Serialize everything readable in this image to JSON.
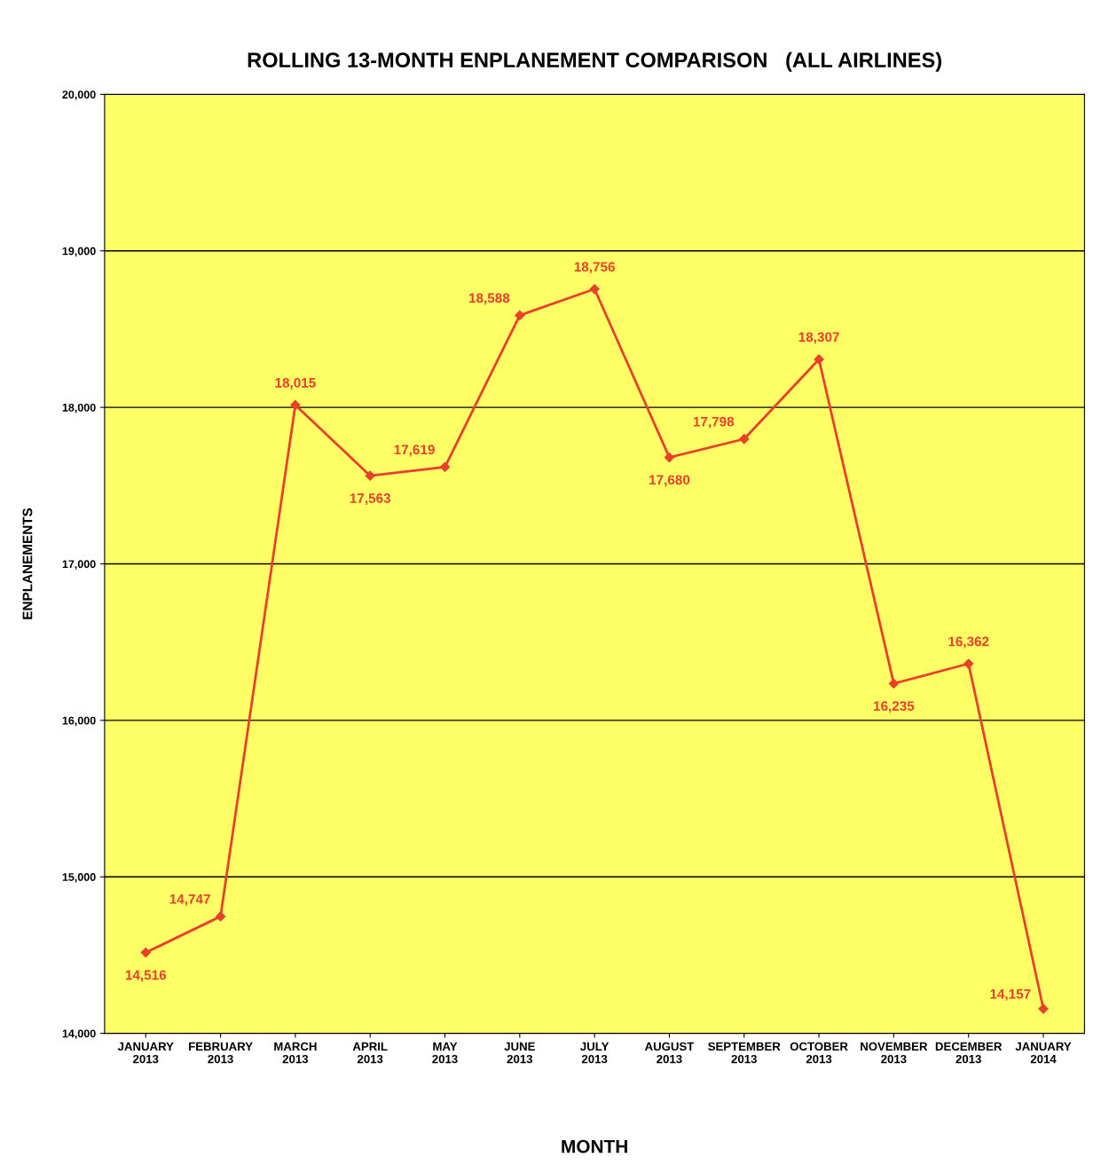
{
  "chart_data": {
    "type": "line",
    "title": "ROLLING 13-MONTH ENPLANEMENT COMPARISON   (ALL AIRLINES)",
    "xlabel": "MONTH",
    "ylabel": "ENPLANEMENTS",
    "categories": [
      "JANUARY\n2013",
      "FEBRUARY\n2013",
      "MARCH\n2013",
      "APRIL\n2013",
      "MAY\n2013",
      "JUNE\n2013",
      "JULY\n2013",
      "AUGUST\n2013",
      "SEPTEMBER\n2013",
      "OCTOBER\n2013",
      "NOVEMBER\n2013",
      "DECEMBER\n2013",
      "JANUARY\n2014"
    ],
    "series": [
      {
        "color": "#e8402a",
        "values": [
          14516,
          14747,
          18015,
          17563,
          17619,
          18588,
          18756,
          17680,
          17798,
          18307,
          16235,
          16362,
          14157
        ],
        "value_labels": [
          "14,516",
          "14,747",
          "18,015",
          "17,563",
          "17,619",
          "18,588",
          "18,756",
          "17,680",
          "17,798",
          "18,307",
          "16,235",
          "16,362",
          "14,157"
        ]
      }
    ],
    "ylim": [
      14000,
      20000
    ],
    "yticks": [
      {
        "value": 14000,
        "label": "14,000"
      },
      {
        "value": 15000,
        "label": "15,000"
      },
      {
        "value": 16000,
        "label": "16,000"
      },
      {
        "value": 17000,
        "label": "17,000"
      },
      {
        "value": 18000,
        "label": "18,000"
      },
      {
        "value": 19000,
        "label": "19,000"
      },
      {
        "value": 20000,
        "label": "20,000"
      }
    ],
    "grid": "y",
    "marker": "diamond",
    "line_style": "solid"
  }
}
